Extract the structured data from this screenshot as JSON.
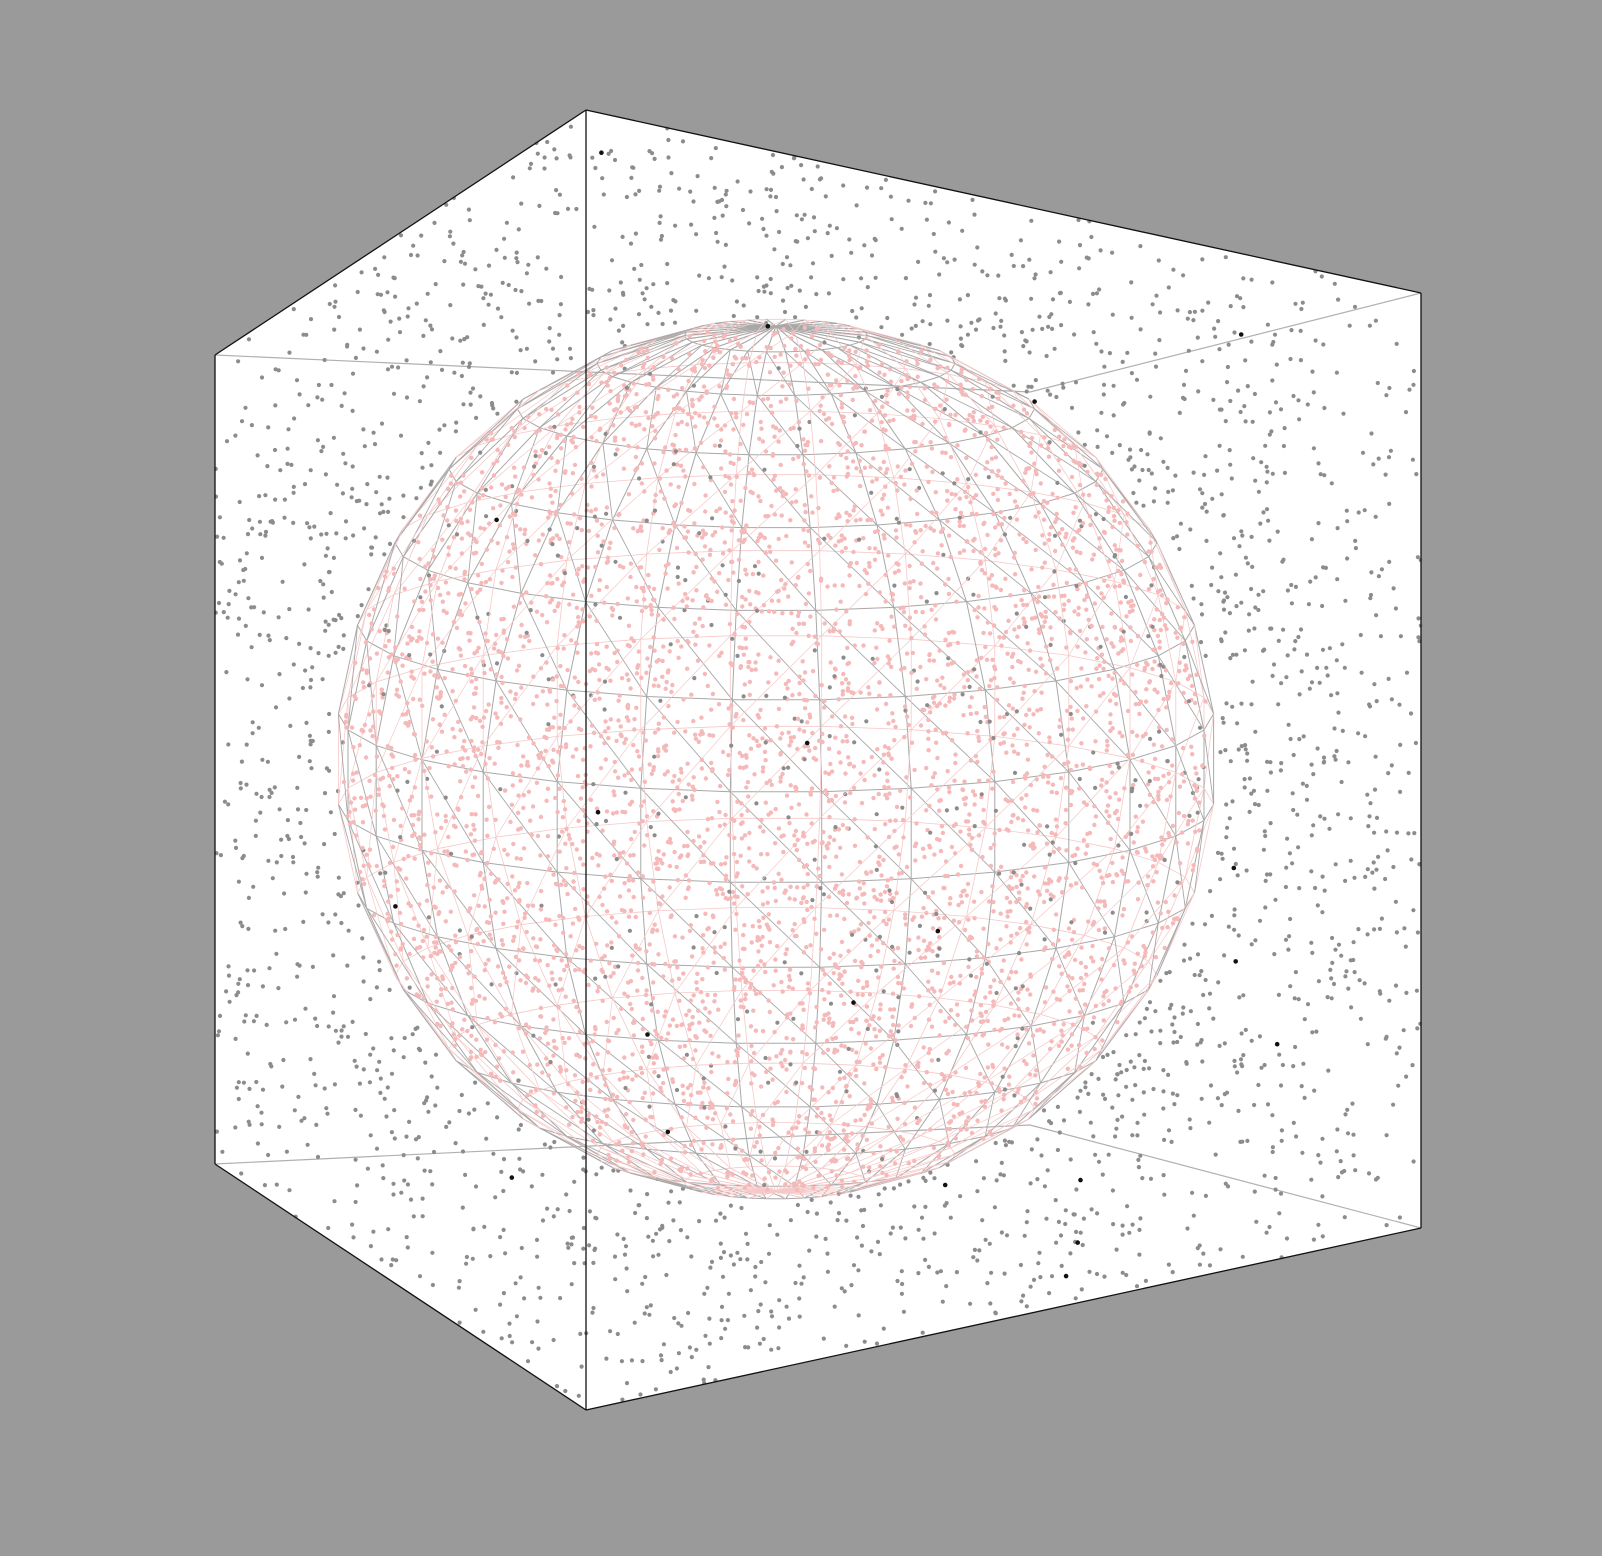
{
  "scene": {
    "background_color": "#9a9a9a",
    "cube": {
      "face_color": "#ffffff",
      "edge_color": "#111111",
      "hidden_edge_color": "#b0b0b0"
    },
    "sphere": {
      "wireframe_color": "#a8a8a8",
      "mesh_tint_color": "#f6c8c8",
      "latitude_bands": 15,
      "longitude_segments": 30
    },
    "point_sets": [
      {
        "name": "outside",
        "color": "#8c8c8c",
        "approx_count": 2200
      },
      {
        "name": "inside",
        "color": "#f5b9b9",
        "approx_count": 4600
      },
      {
        "name": "highlighted",
        "color": "#111111",
        "approx_count": 20
      }
    ]
  }
}
